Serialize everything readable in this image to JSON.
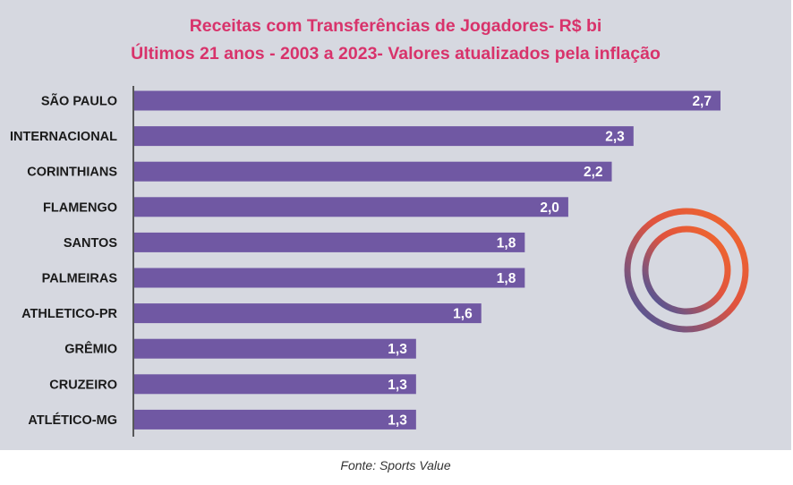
{
  "chart_data": {
    "type": "bar",
    "orientation": "horizontal",
    "title": "Receitas com Transferências de Jogadores- R$ bi",
    "subtitle": "Últimos 21 anos - 2003 a 2023- Valores atualizados pela inflação",
    "categories": [
      "SÃO PAULO",
      "INTERNACIONAL",
      "CORINTHIANS",
      "FLAMENGO",
      "SANTOS",
      "PALMEIRAS",
      "ATHLETICO-PR",
      "GRÊMIO",
      "CRUZEIRO",
      "ATLÉTICO-MG"
    ],
    "values": [
      2.7,
      2.3,
      2.2,
      2.0,
      1.8,
      1.8,
      1.6,
      1.3,
      1.3,
      1.3
    ],
    "value_labels": [
      "2,7",
      "2,3",
      "2,2",
      "2,0",
      "1,8",
      "1,8",
      "1,6",
      "1,3",
      "1,3",
      "1,3"
    ],
    "xlim": [
      0,
      2.7
    ],
    "xlabel": "",
    "ylabel": "",
    "grid": false,
    "legend": "none"
  },
  "source": "Fonte: Sports Value",
  "colors": {
    "background": "#d6d8e0",
    "bar": "#7058a3",
    "title": "#d8336b",
    "value_label": "#ffffff",
    "category_label": "#1a1a1a",
    "ring_orange": "#f26a2b",
    "ring_blue": "#3556a8"
  },
  "logo": {
    "icon": "concentric-rings-icon"
  }
}
